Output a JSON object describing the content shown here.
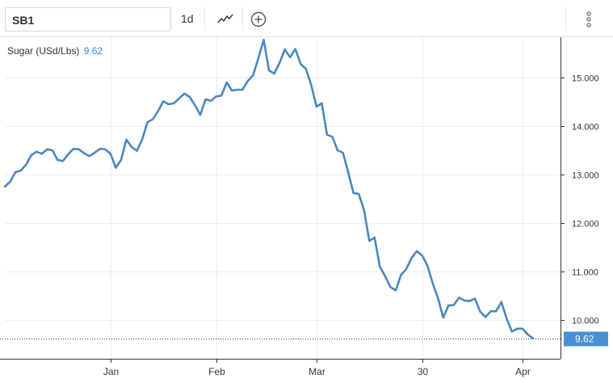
{
  "toolbar": {
    "symbol": "SB1",
    "interval": "1d",
    "icons": [
      "line-chart-icon",
      "add-compare-icon",
      "more-vert-icon"
    ]
  },
  "legend": {
    "label": "Sugar (USd/Lbs)",
    "value": "9.62"
  },
  "colors": {
    "line": "#4a87c0",
    "price_tag": "#4a8fcf",
    "grid": "#ececec"
  },
  "chart_data": {
    "type": "line",
    "ylim": [
      9.2,
      15.8
    ],
    "y_ticks": [
      "15.000",
      "14.000",
      "13.000",
      "12.000",
      "11.000",
      "10.000"
    ],
    "y_tick_values": [
      15,
      14,
      13,
      12,
      11,
      10
    ],
    "x_ticks": [
      "Jan",
      "Feb",
      "Mar",
      "30",
      "Apr"
    ],
    "x_tick_positions": [
      20,
      40,
      59,
      79,
      98
    ],
    "last_price_label": "9.62",
    "series": [
      {
        "values": [
          12.75,
          12.85,
          13.05,
          13.08,
          13.2,
          13.4,
          13.47,
          13.43,
          13.52,
          13.5,
          13.3,
          13.28,
          13.42,
          13.53,
          13.52,
          13.44,
          13.38,
          13.45,
          13.53,
          13.52,
          13.43,
          13.14,
          13.3,
          13.72,
          13.57,
          13.49,
          13.72,
          14.08,
          14.14,
          14.31,
          14.51,
          14.45,
          14.47,
          14.57,
          14.67,
          14.6,
          14.43,
          14.23,
          14.55,
          14.52,
          14.61,
          14.63,
          14.9,
          14.73,
          14.75,
          14.75,
          14.93,
          15.05,
          15.4,
          15.78,
          15.15,
          15.08,
          15.3,
          15.58,
          15.42,
          15.59,
          15.28,
          15.18,
          14.85,
          14.4,
          14.47,
          13.82,
          13.78,
          13.5,
          13.45,
          13.05,
          12.62,
          12.6,
          12.27,
          11.63,
          11.7,
          11.1,
          10.9,
          10.68,
          10.61,
          10.93,
          11.05,
          11.28,
          11.42,
          11.33,
          11.12,
          10.76,
          10.45,
          10.05,
          10.3,
          10.31,
          10.46,
          10.4,
          10.39,
          10.44,
          10.17,
          10.06,
          10.18,
          10.18,
          10.37,
          10.03,
          9.76,
          9.82,
          9.82,
          9.7,
          9.62
        ]
      }
    ]
  }
}
